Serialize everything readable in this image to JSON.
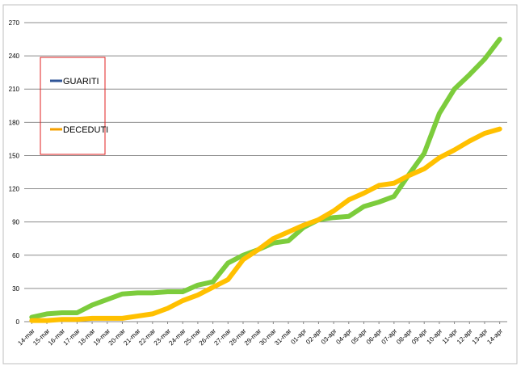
{
  "chart_data": {
    "type": "line",
    "title": "",
    "xlabel": "",
    "ylabel": "",
    "ylim": [
      0,
      270
    ],
    "y_ticks": [
      0,
      30,
      60,
      90,
      120,
      150,
      180,
      210,
      240,
      270
    ],
    "grid": "horizontal",
    "legend_placement": "top-left, boxed",
    "categories": [
      "14-mar",
      "15-mar",
      "16-mar",
      "17-mar",
      "18-mar",
      "19-mar",
      "20-mar",
      "21-mar",
      "22-mar",
      "23-mar",
      "24-mar",
      "25-mar",
      "26-mar",
      "27-mar",
      "28-mar",
      "29-mar",
      "30-mar",
      "31-mar",
      "01-apr",
      "02-apr",
      "03-apr",
      "04-apr",
      "05-apr",
      "06-apr",
      "07-apr",
      "08-apr",
      "09-apr",
      "10-apr",
      "11-apr",
      "12-apr",
      "13-apr",
      "14-apr"
    ],
    "series": [
      {
        "name": "GUARITI",
        "legend_color": "#2f5597",
        "color": "#7ccc3c",
        "values": [
          4,
          7,
          8,
          8,
          15,
          20,
          25,
          26,
          26,
          27,
          27,
          33,
          36,
          53,
          60,
          65,
          71,
          73,
          85,
          92,
          94,
          95,
          104,
          108,
          113,
          133,
          152,
          188,
          210,
          223,
          237,
          255
        ]
      },
      {
        "name": "DECEDUTI",
        "legend_color": "#f5a000",
        "color": "#ffc000",
        "values": [
          1,
          1,
          2,
          2,
          3,
          3,
          3,
          5,
          7,
          12,
          19,
          24,
          31,
          38,
          56,
          65,
          75,
          81,
          87,
          92,
          100,
          110,
          116,
          123,
          125,
          132,
          138,
          148,
          155,
          163,
          170,
          174
        ]
      }
    ]
  }
}
